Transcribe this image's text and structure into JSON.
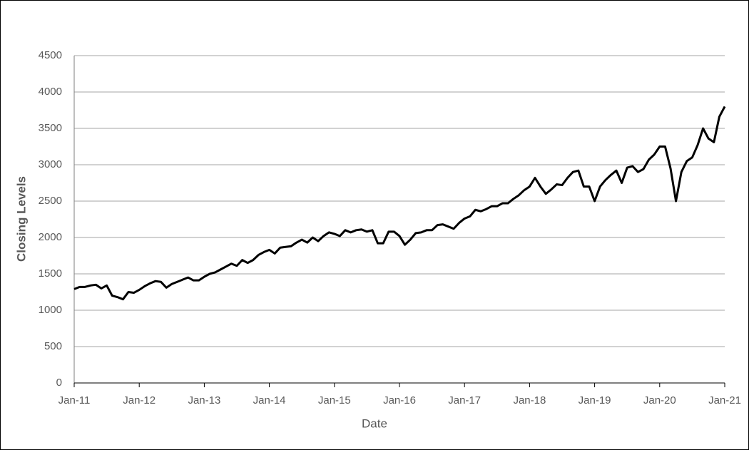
{
  "chart_data": {
    "type": "line",
    "x_label": "Date",
    "y_label": "Closing Levels",
    "x": [
      "Jan-11",
      null,
      null,
      null,
      null,
      null,
      null,
      null,
      null,
      null,
      null,
      null,
      "Jan-12",
      null,
      null,
      null,
      null,
      null,
      null,
      null,
      null,
      null,
      null,
      null,
      "Jan-13",
      null,
      null,
      null,
      null,
      null,
      null,
      null,
      null,
      null,
      null,
      null,
      "Jan-14",
      null,
      null,
      null,
      null,
      null,
      null,
      null,
      null,
      null,
      null,
      null,
      "Jan-15",
      null,
      null,
      null,
      null,
      null,
      null,
      null,
      null,
      null,
      null,
      null,
      "Jan-16",
      null,
      null,
      null,
      null,
      null,
      null,
      null,
      null,
      null,
      null,
      null,
      "Jan-17",
      null,
      null,
      null,
      null,
      null,
      null,
      null,
      null,
      null,
      null,
      null,
      "Jan-18",
      null,
      null,
      null,
      null,
      null,
      null,
      null,
      null,
      null,
      null,
      null,
      "Jan-19",
      null,
      null,
      null,
      null,
      null,
      null,
      null,
      null,
      null,
      null,
      null,
      "Jan-20",
      null,
      null,
      null,
      null,
      null,
      null,
      null,
      null,
      null,
      null,
      null,
      "Jan-21"
    ],
    "values": [
      1290,
      1320,
      1320,
      1340,
      1350,
      1300,
      1340,
      1200,
      1180,
      1150,
      1250,
      1240,
      1280,
      1330,
      1370,
      1400,
      1390,
      1310,
      1360,
      1390,
      1420,
      1450,
      1410,
      1410,
      1460,
      1500,
      1520,
      1560,
      1600,
      1640,
      1610,
      1690,
      1650,
      1690,
      1760,
      1800,
      1830,
      1780,
      1860,
      1870,
      1880,
      1930,
      1970,
      1930,
      2000,
      1950,
      2020,
      2070,
      2050,
      2020,
      2100,
      2070,
      2100,
      2110,
      2080,
      2100,
      1920,
      1920,
      2080,
      2080,
      2020,
      1900,
      1970,
      2060,
      2070,
      2100,
      2100,
      2170,
      2180,
      2150,
      2120,
      2200,
      2260,
      2290,
      2380,
      2360,
      2390,
      2430,
      2430,
      2470,
      2470,
      2530,
      2580,
      2650,
      2700,
      2820,
      2700,
      2600,
      2660,
      2730,
      2720,
      2820,
      2900,
      2920,
      2700,
      2700,
      2500,
      2700,
      2790,
      2860,
      2920,
      2750,
      2960,
      2980,
      2900,
      2940,
      3070,
      3140,
      3250,
      3250,
      2950,
      2500,
      2900,
      3050,
      3100,
      3270,
      3500,
      3360,
      3310,
      3660,
      3800
    ],
    "color": "#000000",
    "ylim": [
      0,
      4500
    ],
    "yticks": [
      0,
      500,
      1000,
      1500,
      2000,
      2500,
      3000,
      3500,
      4000,
      4500
    ],
    "grid": true
  }
}
